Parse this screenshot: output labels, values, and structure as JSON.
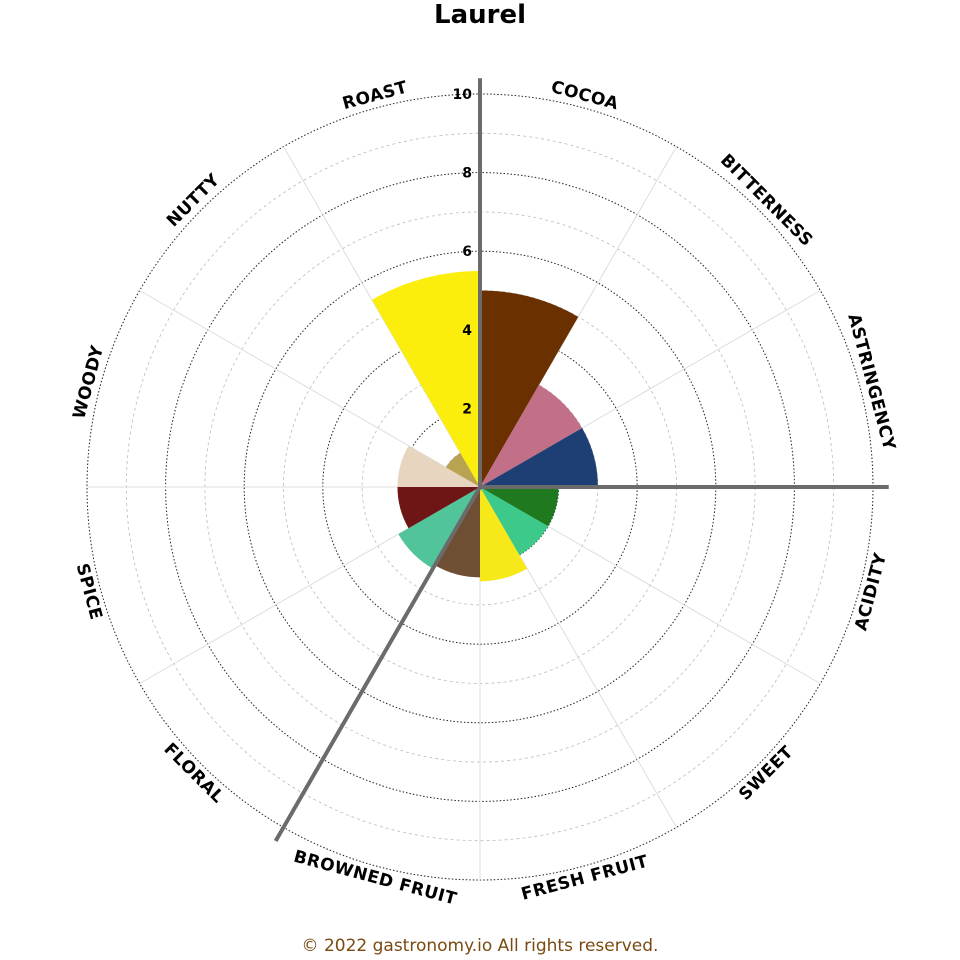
{
  "chart_data": {
    "type": "polar-bar",
    "title": "Laurel",
    "categories": [
      "COCOA",
      "BITTERNESS",
      "ASTRINGENCY",
      "ACIDITY",
      "SWEET",
      "FRESH FRUIT",
      "BROWNED FRUIT",
      "FLORAL",
      "SPICE",
      "WOODY",
      "NUTTY",
      "ROAST"
    ],
    "values": [
      5.0,
      3.0,
      3.0,
      2.0,
      2.0,
      2.4,
      2.3,
      2.4,
      2.1,
      2.1,
      1.0,
      5.5
    ],
    "colors": [
      "#6b3000",
      "#c27088",
      "#1e3f73",
      "#1f7a1f",
      "#3cc98a",
      "#f7e81a",
      "#6e4f34",
      "#52c49a",
      "#6e1616",
      "#e8d5c0",
      "#b8a450",
      "#fbee0c"
    ],
    "r_ticks": [
      2,
      4,
      6,
      8,
      10
    ],
    "r_range": [
      0,
      10
    ],
    "grid": true,
    "copyright": "© 2022 gastronomy.io All rights reserved."
  }
}
